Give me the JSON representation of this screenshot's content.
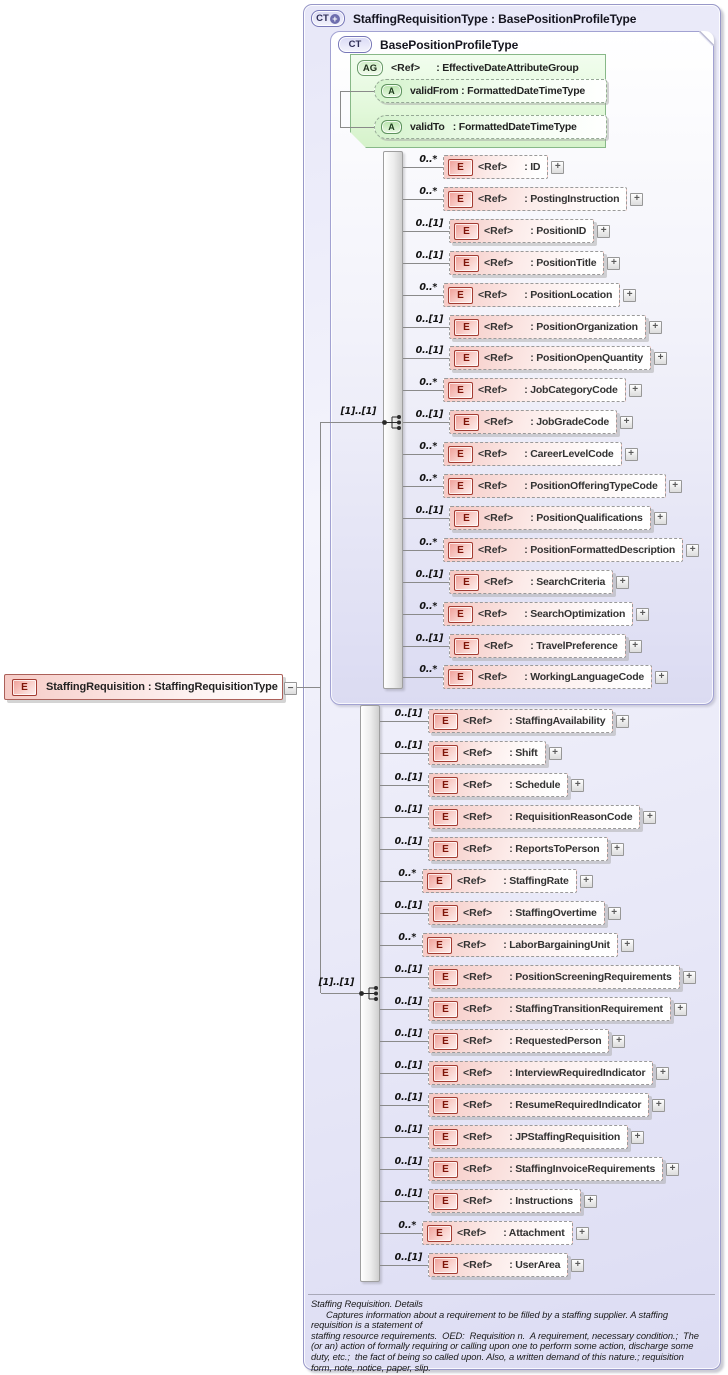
{
  "expand_glyph": "+",
  "collapse_glyph": "−",
  "outer": {
    "badge": "CT",
    "badge_plus": "+",
    "title": "StaffingRequisitionType : BasePositionProfileType"
  },
  "inner": {
    "badge": "CT",
    "title": "BasePositionProfileType"
  },
  "attribute_group": {
    "badge": "AG",
    "ref": "<Ref>",
    "title": ": EffectiveDateAttributeGroup",
    "attributes": [
      {
        "badge": "A",
        "label": "validFrom : FormattedDateTimeType"
      },
      {
        "badge": "A",
        "label": "validTo   : FormattedDateTimeType"
      }
    ]
  },
  "root_element": {
    "badge": "E",
    "label": "StaffingRequisition : StaffingRequisitionType"
  },
  "groups": [
    {
      "cardinality": "[1]..[1]",
      "items": [
        {
          "occurs": "0..*",
          "ref": "<Ref>",
          "label": ": ID",
          "multi": true
        },
        {
          "occurs": "0..*",
          "ref": "<Ref>",
          "label": ": PostingInstruction",
          "multi": true
        },
        {
          "occurs": "0..[1]",
          "ref": "<Ref>",
          "label": ": PositionID",
          "multi": false
        },
        {
          "occurs": "0..[1]",
          "ref": "<Ref>",
          "label": ": PositionTitle",
          "multi": false
        },
        {
          "occurs": "0..*",
          "ref": "<Ref>",
          "label": ": PositionLocation",
          "multi": true
        },
        {
          "occurs": "0..[1]",
          "ref": "<Ref>",
          "label": ": PositionOrganization",
          "multi": false
        },
        {
          "occurs": "0..[1]",
          "ref": "<Ref>",
          "label": ": PositionOpenQuantity",
          "multi": false
        },
        {
          "occurs": "0..*",
          "ref": "<Ref>",
          "label": ": JobCategoryCode",
          "multi": true
        },
        {
          "occurs": "0..[1]",
          "ref": "<Ref>",
          "label": ": JobGradeCode",
          "multi": false
        },
        {
          "occurs": "0..*",
          "ref": "<Ref>",
          "label": ": CareerLevelCode",
          "multi": true
        },
        {
          "occurs": "0..*",
          "ref": "<Ref>",
          "label": ": PositionOfferingTypeCode",
          "multi": true
        },
        {
          "occurs": "0..[1]",
          "ref": "<Ref>",
          "label": ": PositionQualifications",
          "multi": false
        },
        {
          "occurs": "0..*",
          "ref": "<Ref>",
          "label": ": PositionFormattedDescription",
          "multi": true
        },
        {
          "occurs": "0..[1]",
          "ref": "<Ref>",
          "label": ": SearchCriteria",
          "multi": false
        },
        {
          "occurs": "0..*",
          "ref": "<Ref>",
          "label": ": SearchOptimization",
          "multi": true
        },
        {
          "occurs": "0..[1]",
          "ref": "<Ref>",
          "label": ": TravelPreference",
          "multi": false
        },
        {
          "occurs": "0..*",
          "ref": "<Ref>",
          "label": ": WorkingLanguageCode",
          "multi": true
        }
      ]
    },
    {
      "cardinality": "[1]..[1]",
      "items": [
        {
          "occurs": "0..[1]",
          "ref": "<Ref>",
          "label": ": StaffingAvailability",
          "multi": false
        },
        {
          "occurs": "0..[1]",
          "ref": "<Ref>",
          "label": ": Shift",
          "multi": false
        },
        {
          "occurs": "0..[1]",
          "ref": "<Ref>",
          "label": ": Schedule",
          "multi": false
        },
        {
          "occurs": "0..[1]",
          "ref": "<Ref>",
          "label": ": RequisitionReasonCode",
          "multi": false
        },
        {
          "occurs": "0..[1]",
          "ref": "<Ref>",
          "label": ": ReportsToPerson",
          "multi": false
        },
        {
          "occurs": "0..*",
          "ref": "<Ref>",
          "label": ": StaffingRate",
          "multi": true
        },
        {
          "occurs": "0..[1]",
          "ref": "<Ref>",
          "label": ": StaffingOvertime",
          "multi": false
        },
        {
          "occurs": "0..*",
          "ref": "<Ref>",
          "label": ": LaborBargainingUnit",
          "multi": true
        },
        {
          "occurs": "0..[1]",
          "ref": "<Ref>",
          "label": ": PositionScreeningRequirements",
          "multi": false
        },
        {
          "occurs": "0..[1]",
          "ref": "<Ref>",
          "label": ": StaffingTransitionRequirement",
          "multi": false
        },
        {
          "occurs": "0..[1]",
          "ref": "<Ref>",
          "label": ": RequestedPerson",
          "multi": false
        },
        {
          "occurs": "0..[1]",
          "ref": "<Ref>",
          "label": ": InterviewRequiredIndicator",
          "multi": false
        },
        {
          "occurs": "0..[1]",
          "ref": "<Ref>",
          "label": ": ResumeRequiredIndicator",
          "multi": false
        },
        {
          "occurs": "0..[1]",
          "ref": "<Ref>",
          "label": ": JPStaffingRequisition",
          "multi": false
        },
        {
          "occurs": "0..[1]",
          "ref": "<Ref>",
          "label": ": StaffingInvoiceRequirements",
          "multi": false
        },
        {
          "occurs": "0..[1]",
          "ref": "<Ref>",
          "label": ": Instructions",
          "multi": false
        },
        {
          "occurs": "0..*",
          "ref": "<Ref>",
          "label": ": Attachment",
          "multi": true
        },
        {
          "occurs": "0..[1]",
          "ref": "<Ref>",
          "label": ": UserArea",
          "multi": false
        }
      ]
    }
  ],
  "footer_lines": [
    "Staffing Requisition. Details",
    "      Captures information about a requirement to be filled by a staffing supplier. A staffing",
    "requisition is a statement of",
    "staffing resource requirements.  OED:  Requisition n.  A requirement, necessary condition.;  The",
    "(or an) action of formally requiring or calling upon one to perform some action, discharge some",
    "duty, etc.;  the fact of being so called upon. Also, a written demand of this nature.; requisition",
    "form, note, notice, paper, slip."
  ]
}
